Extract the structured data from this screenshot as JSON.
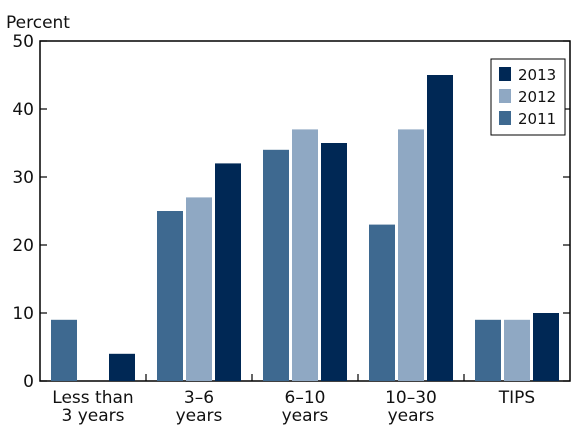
{
  "chart_data": {
    "type": "bar",
    "ylabel": "Percent",
    "ylim": [
      0,
      50
    ],
    "yticks": [
      0,
      10,
      20,
      30,
      40,
      50
    ],
    "grid": false,
    "legend_position": "top-right",
    "categories": [
      [
        "Less than",
        "3 years"
      ],
      [
        "3–6",
        "years"
      ],
      [
        "6–10",
        "years"
      ],
      [
        "10–30",
        "years"
      ],
      [
        "TIPS"
      ]
    ],
    "series": [
      {
        "name": "2011",
        "color": "#3e6990",
        "values": [
          9,
          25,
          34,
          23,
          9
        ]
      },
      {
        "name": "2012",
        "color": "#8fa8c3",
        "values": [
          0,
          27,
          37,
          37,
          9
        ]
      },
      {
        "name": "2013",
        "color": "#002855",
        "values": [
          4,
          32,
          35,
          45,
          10
        ]
      }
    ],
    "legend_order": [
      "2013",
      "2012",
      "2011"
    ]
  }
}
